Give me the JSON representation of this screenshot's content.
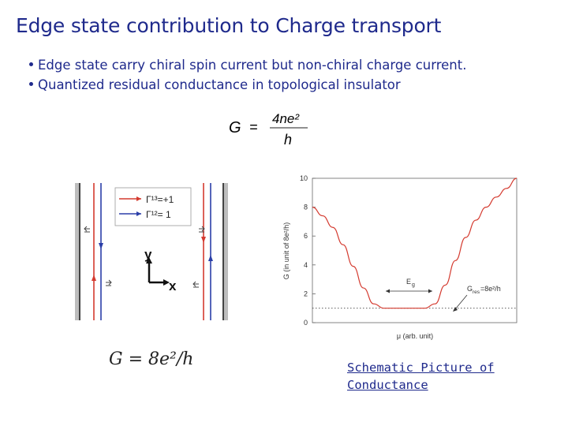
{
  "title": "Edge state contribution to Charge transport",
  "bullets": [
    "Edge state carry chiral spin current but non-chiral charge current.",
    "Quantized residual conductance in topological insulator"
  ],
  "equation_top": {
    "lhs": "G",
    "op": "=",
    "numerator": "4ne²",
    "denominator": "h"
  },
  "equation_bottom": "G = 8e²/h",
  "diagram": {
    "legend": [
      {
        "label": "Γ¹³=+1",
        "color": "#d43a2f"
      },
      {
        "label": "Γ¹²= 1",
        "color": "#2b3fa8"
      }
    ],
    "axis_y": "y",
    "axis_x": "x"
  },
  "chart_data": {
    "type": "line",
    "xlabel": "μ (arb. unit)",
    "ylabel": "G (in unit of 8e²/h)",
    "ylim": [
      0,
      10
    ],
    "yticks": [
      0,
      2,
      4,
      6,
      8,
      10
    ],
    "x": [
      0,
      0.05,
      0.1,
      0.15,
      0.2,
      0.25,
      0.3,
      0.35,
      0.4,
      0.45,
      0.5,
      0.55,
      0.6,
      0.65,
      0.7,
      0.75,
      0.8,
      0.85,
      0.9,
      0.95,
      1.0
    ],
    "series": [
      {
        "values": [
          8.0,
          7.4,
          6.6,
          5.4,
          3.9,
          2.4,
          1.3,
          1.0,
          1.0,
          1.0,
          1.0,
          1.0,
          1.3,
          2.6,
          4.3,
          5.9,
          7.1,
          8.0,
          8.7,
          9.3,
          10.0
        ],
        "color": "#d43a2f"
      }
    ],
    "reference_line": {
      "value": 1.0,
      "style": "dotted"
    },
    "annotations": [
      "E",
      "g",
      "G",
      "res",
      "=8e²/h"
    ]
  },
  "link_text": [
    "Schematic Picture of",
    "Conductance"
  ]
}
